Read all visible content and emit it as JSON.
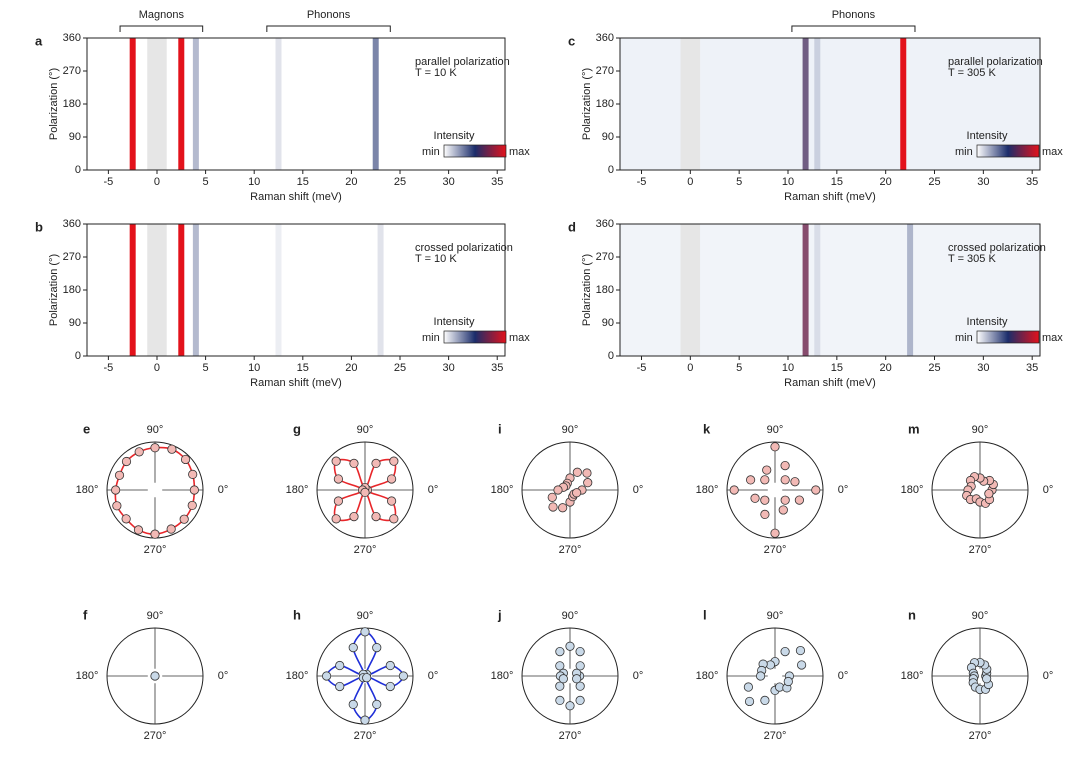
{
  "chart_data": [
    {
      "type": "heatmap",
      "label": "a",
      "xlabel": "Raman shift (meV)",
      "ylabel": "Polarization (°)",
      "xlim": [
        -7.2,
        35.8
      ],
      "xticks": [
        -5,
        0,
        5,
        10,
        15,
        20,
        25,
        30,
        35
      ],
      "ylim": [
        0,
        360
      ],
      "yticks": [
        0,
        90,
        180,
        270,
        360
      ],
      "masked_x": [
        -1,
        1
      ],
      "background": "#ffffff",
      "colormap": [
        "#ffffff",
        "#1b2d6b",
        "#e3121b"
      ],
      "peaks": {
        "x": [
          -2.5,
          2.5,
          4,
          12.5,
          22.5
        ],
        "intensity": [
          1,
          1,
          0.3,
          0.15,
          0.45
        ]
      },
      "annotation": [
        "parallel polarization",
        "T = 10 K"
      ],
      "colorbar": {
        "title": "Intensity",
        "min": "min",
        "max": "max"
      },
      "brackets": [
        {
          "label": "Magnons",
          "x_range": [
            -3.8,
            4.7
          ]
        },
        {
          "label": "Phonons",
          "x_range": [
            11.3,
            24
          ]
        }
      ]
    },
    {
      "type": "heatmap",
      "label": "b",
      "xlabel": "Raman shift (meV)",
      "ylabel": "Polarization (°)",
      "xlim": [
        -7.2,
        35.8
      ],
      "xticks": [
        -5,
        0,
        5,
        10,
        15,
        20,
        25,
        30,
        35
      ],
      "ylim": [
        0,
        360
      ],
      "yticks": [
        0,
        90,
        180,
        270,
        360
      ],
      "masked_x": [
        -1,
        1
      ],
      "background": "#ffffff",
      "colormap": [
        "#ffffff",
        "#1b2d6b",
        "#e3121b"
      ],
      "peaks": {
        "x": [
          -2.5,
          2.5,
          4,
          12.5,
          23
        ],
        "intensity": [
          1,
          1,
          0.3,
          0.1,
          0.15
        ]
      },
      "annotation": [
        "crossed polarization",
        "T = 10 K"
      ],
      "colorbar": {
        "title": "Intensity",
        "min": "min",
        "max": "max"
      }
    },
    {
      "type": "heatmap",
      "label": "c",
      "xlabel": "Raman shift (meV)",
      "ylabel": "Polarization (°)",
      "xlim": [
        -7.2,
        35.8
      ],
      "xticks": [
        -5,
        0,
        5,
        10,
        15,
        20,
        25,
        30,
        35
      ],
      "ylim": [
        0,
        360
      ],
      "yticks": [
        0,
        90,
        180,
        270,
        360
      ],
      "masked_x": [
        -1,
        1
      ],
      "background": "#eef2f8",
      "colormap": [
        "#ffffff",
        "#1b2d6b",
        "#e3121b"
      ],
      "peaks": {
        "x": [
          11.8,
          13,
          21.8
        ],
        "intensity": [
          0.6,
          0.2,
          1
        ]
      },
      "annotation": [
        "parallel polarization",
        "T = 305 K"
      ],
      "colorbar": {
        "title": "Intensity",
        "min": "min",
        "max": "max"
      },
      "brackets": [
        {
          "label": "Phonons",
          "x_range": [
            10.4,
            23
          ]
        }
      ]
    },
    {
      "type": "heatmap",
      "label": "d",
      "xlabel": "Raman shift (meV)",
      "ylabel": "Polarization (°)",
      "xlim": [
        -7.2,
        35.8
      ],
      "xticks": [
        -5,
        0,
        5,
        10,
        15,
        20,
        25,
        30,
        35
      ],
      "ylim": [
        0,
        360
      ],
      "yticks": [
        0,
        90,
        180,
        270,
        360
      ],
      "masked_x": [
        -1,
        1
      ],
      "background": "#f1f4f9",
      "colormap": [
        "#ffffff",
        "#1b2d6b",
        "#e3121b"
      ],
      "peaks": {
        "x": [
          11.8,
          13,
          22.5
        ],
        "intensity": [
          0.7,
          0.15,
          0.3
        ]
      },
      "annotation": [
        "crossed polarization",
        "T = 305 K"
      ],
      "colorbar": {
        "title": "Intensity",
        "min": "min",
        "max": "max"
      }
    },
    {
      "type": "polar",
      "label": "e",
      "rlim": [
        0,
        1
      ],
      "color": "#f2b9b5",
      "fit_color": "#e8262a",
      "angle_ticks": [
        {
          "value": 0,
          "label": "0°"
        },
        {
          "value": 90,
          "label": "90°"
        },
        {
          "value": 180,
          "label": "180°"
        },
        {
          "value": 270,
          "label": "270°"
        }
      ],
      "theta": [
        0,
        22.5,
        45,
        67.5,
        90,
        112.5,
        135,
        157.5,
        180,
        202.5,
        225,
        247.5,
        270,
        292.5,
        315,
        337.5
      ],
      "values": [
        0.82,
        0.85,
        0.9,
        0.92,
        0.88,
        0.86,
        0.84,
        0.8,
        0.82,
        0.86,
        0.85,
        0.9,
        0.92,
        0.88,
        0.86,
        0.84
      ]
    },
    {
      "type": "polar",
      "label": "f",
      "rlim": [
        0,
        1
      ],
      "color": "#c9d9e8",
      "angle_ticks": [
        {
          "value": 0,
          "label": "0°"
        },
        {
          "value": 90,
          "label": "90°"
        },
        {
          "value": 180,
          "label": "180°"
        },
        {
          "value": 270,
          "label": "270°"
        }
      ],
      "theta": [
        0
      ],
      "values": [
        0
      ]
    },
    {
      "type": "polar",
      "label": "g",
      "rlim": [
        0,
        1
      ],
      "color": "#f2b9b5",
      "fit_color": "#e8262a",
      "angle_ticks": [
        {
          "value": 0,
          "label": "0°"
        },
        {
          "value": 90,
          "label": "90°"
        },
        {
          "value": 180,
          "label": "180°"
        },
        {
          "value": 270,
          "label": "270°"
        }
      ],
      "theta": [
        0,
        22.5,
        45,
        67.5,
        90,
        112.5,
        135,
        157.5,
        180,
        202.5,
        225,
        247.5,
        270,
        292.5,
        315,
        337.5
      ],
      "values": [
        0.05,
        0.6,
        0.85,
        0.6,
        0.05,
        0.6,
        0.85,
        0.6,
        0.05,
        0.6,
        0.85,
        0.6,
        0.05,
        0.6,
        0.85,
        0.6
      ]
    },
    {
      "type": "polar",
      "label": "h",
      "rlim": [
        0,
        1
      ],
      "color": "#c9d9e8",
      "fit_color": "#1f2fd8",
      "angle_ticks": [
        {
          "value": 0,
          "label": "0°"
        },
        {
          "value": 90,
          "label": "90°"
        },
        {
          "value": 180,
          "label": "180°"
        },
        {
          "value": 270,
          "label": "270°"
        }
      ],
      "theta": [
        0,
        22.5,
        45,
        67.5,
        90,
        112.5,
        135,
        157.5,
        180,
        202.5,
        225,
        247.5,
        270,
        292.5,
        315,
        337.5
      ],
      "values": [
        0.8,
        0.57,
        0.05,
        0.64,
        0.92,
        0.64,
        0.05,
        0.57,
        0.8,
        0.57,
        0.05,
        0.64,
        0.92,
        0.64,
        0.05,
        0.57
      ]
    },
    {
      "type": "polar",
      "label": "i",
      "rlim": [
        0,
        1
      ],
      "color": "#f2b9b5",
      "angle_ticks": [
        {
          "value": 0,
          "label": "0°"
        },
        {
          "value": 90,
          "label": "90°"
        },
        {
          "value": 180,
          "label": "180°"
        },
        {
          "value": 270,
          "label": "270°"
        }
      ],
      "theta": [
        0,
        22.5,
        45,
        67.5,
        90,
        112.5,
        135,
        157.5,
        180,
        202.5,
        225,
        247.5,
        270,
        292.5,
        315,
        337.5
      ],
      "values": [
        0.25,
        0.4,
        0.5,
        0.4,
        0.25,
        0.15,
        0.12,
        0.15,
        0.25,
        0.4,
        0.5,
        0.4,
        0.25,
        0.15,
        0.12,
        0.15
      ]
    },
    {
      "type": "polar",
      "label": "j",
      "rlim": [
        0,
        1
      ],
      "color": "#c9d9e8",
      "angle_ticks": [
        {
          "value": 0,
          "label": "0°"
        },
        {
          "value": 90,
          "label": "90°"
        },
        {
          "value": 180,
          "label": "180°"
        },
        {
          "value": 270,
          "label": "270°"
        }
      ],
      "theta": [
        0,
        22.5,
        45,
        67.5,
        90,
        112.5,
        135,
        157.5,
        180,
        202.5,
        225,
        247.5,
        270,
        292.5,
        315,
        337.5
      ],
      "values": [
        0.2,
        0.15,
        0.3,
        0.55,
        0.62,
        0.55,
        0.3,
        0.15,
        0.2,
        0.15,
        0.3,
        0.55,
        0.62,
        0.55,
        0.3,
        0.15
      ]
    },
    {
      "type": "polar",
      "label": "k",
      "rlim": [
        0,
        1
      ],
      "color": "#f2b9b5",
      "angle_ticks": [
        {
          "value": 0,
          "label": "0°"
        },
        {
          "value": 90,
          "label": "90°"
        },
        {
          "value": 180,
          "label": "180°"
        },
        {
          "value": 270,
          "label": "270°"
        }
      ],
      "theta": [
        0,
        22.5,
        45,
        67.5,
        90,
        112.5,
        135,
        157.5,
        180,
        202.5,
        225,
        247.5,
        270,
        292.5,
        315,
        337.5
      ],
      "values": [
        0.85,
        0.45,
        0.3,
        0.55,
        0.9,
        0.45,
        0.3,
        0.55,
        0.85,
        0.45,
        0.3,
        0.55,
        0.9,
        0.45,
        0.3,
        0.55
      ]
    },
    {
      "type": "polar",
      "label": "l",
      "rlim": [
        0,
        1
      ],
      "color": "#c9d9e8",
      "angle_ticks": [
        {
          "value": 0,
          "label": "0°"
        },
        {
          "value": 90,
          "label": "90°"
        },
        {
          "value": 180,
          "label": "180°"
        },
        {
          "value": 270,
          "label": "270°"
        }
      ],
      "theta": [
        0,
        22.5,
        45,
        67.5,
        90,
        112.5,
        135,
        157.5,
        180,
        202.5,
        225,
        247.5,
        270,
        292.5,
        315,
        337.5
      ],
      "values": [
        0.3,
        0.6,
        0.75,
        0.55,
        0.3,
        0.25,
        0.35,
        0.3,
        0.3,
        0.6,
        0.75,
        0.55,
        0.3,
        0.25,
        0.35,
        0.3
      ]
    },
    {
      "type": "polar",
      "label": "m",
      "rlim": [
        0,
        1
      ],
      "color": "#f2b9b5",
      "angle_ticks": [
        {
          "value": 0,
          "label": "0°"
        },
        {
          "value": 90,
          "label": "90°"
        },
        {
          "value": 180,
          "label": "180°"
        },
        {
          "value": 270,
          "label": "270°"
        }
      ],
      "theta": [
        0,
        22.5,
        45,
        67.5,
        90,
        112.5,
        135,
        157.5,
        180,
        202.5,
        225,
        247.5,
        270,
        292.5,
        315,
        337.5
      ],
      "values": [
        0.25,
        0.3,
        0.28,
        0.2,
        0.25,
        0.3,
        0.28,
        0.2,
        0.25,
        0.3,
        0.28,
        0.2,
        0.25,
        0.3,
        0.28,
        0.2
      ]
    },
    {
      "type": "polar",
      "label": "n",
      "rlim": [
        0,
        1
      ],
      "color": "#c9d9e8",
      "angle_ticks": [
        {
          "value": 0,
          "label": "0°"
        },
        {
          "value": 90,
          "label": "90°"
        },
        {
          "value": 180,
          "label": "180°"
        },
        {
          "value": 270,
          "label": "270°"
        }
      ],
      "theta": [
        0,
        22.5,
        45,
        67.5,
        90,
        112.5,
        135,
        157.5,
        180,
        202.5,
        225,
        247.5,
        270,
        292.5,
        315,
        337.5
      ],
      "values": [
        0.12,
        0.15,
        0.2,
        0.25,
        0.28,
        0.3,
        0.25,
        0.15,
        0.12,
        0.15,
        0.2,
        0.25,
        0.28,
        0.3,
        0.25,
        0.15
      ]
    }
  ]
}
